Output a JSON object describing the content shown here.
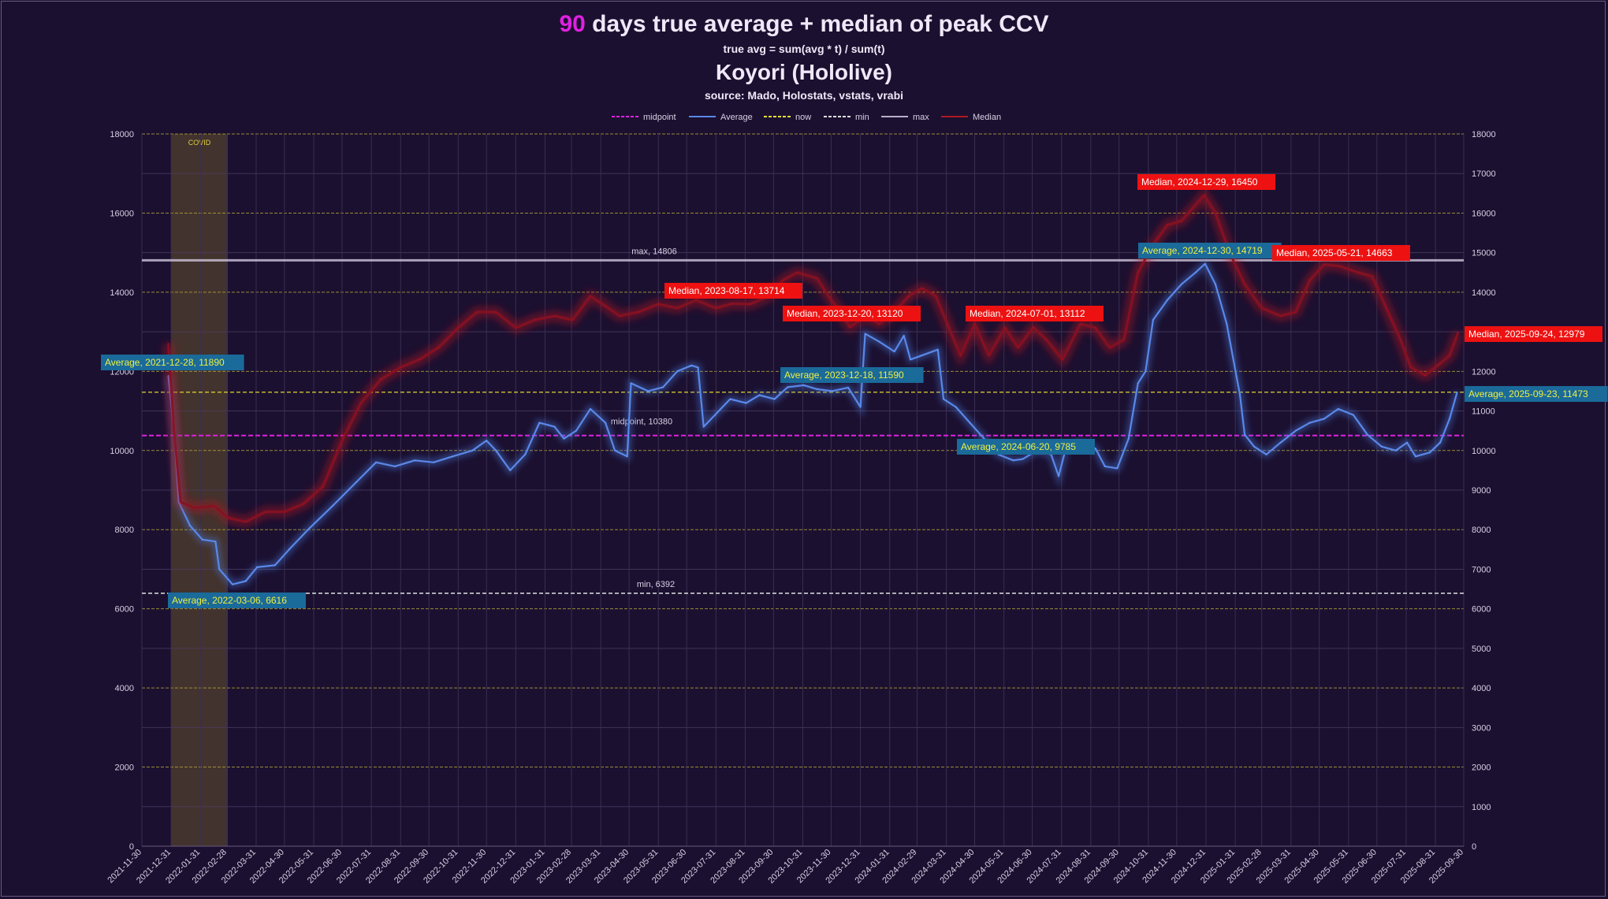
{
  "header": {
    "title_highlight": "90",
    "title_rest": " days true average + median of peak CCV",
    "subtitle": "true avg = sum(avg * t) / sum(t)",
    "channel": "Koyori (Hololive)",
    "source": "source: Mado, Holostats, vstats, vrabi"
  },
  "chart_data": {
    "type": "line",
    "title": "90 days true average + median of peak CCV",
    "subtitle": "true avg = sum(avg * t) / sum(t)",
    "legend_position": "top",
    "legend": [
      "midpoint",
      "Average",
      "now",
      "min",
      "max",
      "Median"
    ],
    "y_left": {
      "range": [
        0,
        18000
      ],
      "ticks": [
        0,
        2000,
        4000,
        6000,
        8000,
        10000,
        12000,
        14000,
        16000,
        18000
      ]
    },
    "y_right": {
      "range": [
        0,
        18000
      ],
      "ticks": [
        0,
        1000,
        2000,
        3000,
        4000,
        5000,
        6000,
        7000,
        8000,
        9000,
        10000,
        11000,
        12000,
        13000,
        14000,
        15000,
        16000,
        17000,
        18000
      ]
    },
    "x_range": [
      "2021-11-30",
      "2025-09-30"
    ],
    "x_ticks": [
      "2021-11-30",
      "2021-12-31",
      "2022-01-31",
      "2022-02-28",
      "2022-03-31",
      "2022-04-30",
      "2022-05-31",
      "2022-06-30",
      "2022-07-31",
      "2022-08-31",
      "2022-09-30",
      "2022-10-31",
      "2022-11-30",
      "2022-12-31",
      "2023-01-31",
      "2023-02-28",
      "2023-03-31",
      "2023-04-30",
      "2023-05-31",
      "2023-06-30",
      "2023-07-31",
      "2023-08-31",
      "2023-09-30",
      "2023-10-31",
      "2023-11-30",
      "2023-12-31",
      "2024-01-31",
      "2024-02-29",
      "2024-03-31",
      "2024-04-30",
      "2024-05-31",
      "2024-06-30",
      "2024-07-31",
      "2024-08-31",
      "2024-09-30",
      "2024-10-31",
      "2024-11-30",
      "2024-12-31",
      "2025-01-31",
      "2025-02-28",
      "2025-03-31",
      "2025-04-30",
      "2025-05-31",
      "2025-06-30",
      "2025-07-31",
      "2025-08-31",
      "2025-09-30"
    ],
    "grid": true,
    "shaded_region": {
      "label": "COVID",
      "from": "2021-12-31",
      "to": "2022-03-01"
    },
    "reference_lines": [
      {
        "name": "max",
        "value": 14806,
        "label": "max, 14806",
        "color": "#d0c8dc"
      },
      {
        "name": "midpoint",
        "value": 10380,
        "label": "midpoint, 10380",
        "color": "#e020e0"
      },
      {
        "name": "min",
        "value": 6392,
        "label": "min, 6392",
        "color": "#e0e0e0"
      },
      {
        "name": "now",
        "value": 11473,
        "label": "",
        "color": "#e8e030"
      }
    ],
    "series": [
      {
        "name": "Average",
        "color": "#5a88e8",
        "points": [
          [
            "2021-12-28",
            11890
          ],
          [
            "2022-01-03",
            10500
          ],
          [
            "2022-01-08",
            8700
          ],
          [
            "2022-01-20",
            8100
          ],
          [
            "2022-02-02",
            7750
          ],
          [
            "2022-02-16",
            7700
          ],
          [
            "2022-02-20",
            7000
          ],
          [
            "2022-03-06",
            6616
          ],
          [
            "2022-03-20",
            6700
          ],
          [
            "2022-04-01",
            7050
          ],
          [
            "2022-04-20",
            7100
          ],
          [
            "2022-05-05",
            7500
          ],
          [
            "2022-05-25",
            8000
          ],
          [
            "2022-06-20",
            8600
          ],
          [
            "2022-07-15",
            9200
          ],
          [
            "2022-08-05",
            9700
          ],
          [
            "2022-08-25",
            9600
          ],
          [
            "2022-09-15",
            9750
          ],
          [
            "2022-10-05",
            9700
          ],
          [
            "2022-10-25",
            9850
          ],
          [
            "2022-11-15",
            10000
          ],
          [
            "2022-11-30",
            10250
          ],
          [
            "2022-12-10",
            10000
          ],
          [
            "2022-12-25",
            9500
          ],
          [
            "2023-01-10",
            9900
          ],
          [
            "2023-01-25",
            10700
          ],
          [
            "2023-02-10",
            10600
          ],
          [
            "2023-02-20",
            10300
          ],
          [
            "2023-03-05",
            10500
          ],
          [
            "2023-03-20",
            11050
          ],
          [
            "2023-04-05",
            10700
          ],
          [
            "2023-04-15",
            10000
          ],
          [
            "2023-04-28",
            9850
          ],
          [
            "2023-05-02",
            11700
          ],
          [
            "2023-05-20",
            11500
          ],
          [
            "2023-06-05",
            11600
          ],
          [
            "2023-06-20",
            12000
          ],
          [
            "2023-07-05",
            12150
          ],
          [
            "2023-07-12",
            12100
          ],
          [
            "2023-07-18",
            10600
          ],
          [
            "2023-07-30",
            10900
          ],
          [
            "2023-08-15",
            11300
          ],
          [
            "2023-09-01",
            11200
          ],
          [
            "2023-09-15",
            11400
          ],
          [
            "2023-10-01",
            11300
          ],
          [
            "2023-10-15",
            11600
          ],
          [
            "2023-11-01",
            11650
          ],
          [
            "2023-11-15",
            11550
          ],
          [
            "2023-12-01",
            11500
          ],
          [
            "2023-12-18",
            11590
          ],
          [
            "2023-12-31",
            11100
          ],
          [
            "2024-01-05",
            12950
          ],
          [
            "2024-01-20",
            12750
          ],
          [
            "2024-02-05",
            12500
          ],
          [
            "2024-02-15",
            12900
          ],
          [
            "2024-02-22",
            12300
          ],
          [
            "2024-03-05",
            12400
          ],
          [
            "2024-03-22",
            12550
          ],
          [
            "2024-03-28",
            11300
          ],
          [
            "2024-04-10",
            11100
          ],
          [
            "2024-04-25",
            10700
          ],
          [
            "2024-05-10",
            10300
          ],
          [
            "2024-05-25",
            9900
          ],
          [
            "2024-06-10",
            9750
          ],
          [
            "2024-06-20",
            9785
          ],
          [
            "2024-07-05",
            10000
          ],
          [
            "2024-07-20",
            9900
          ],
          [
            "2024-07-28",
            9350
          ],
          [
            "2024-08-05",
            10100
          ],
          [
            "2024-08-20",
            10200
          ],
          [
            "2024-09-05",
            10050
          ],
          [
            "2024-09-15",
            9600
          ],
          [
            "2024-09-28",
            9550
          ],
          [
            "2024-10-10",
            10300
          ],
          [
            "2024-10-20",
            11700
          ],
          [
            "2024-10-28",
            12000
          ],
          [
            "2024-11-05",
            13300
          ],
          [
            "2024-11-20",
            13800
          ],
          [
            "2024-12-05",
            14200
          ],
          [
            "2024-12-20",
            14500
          ],
          [
            "2024-12-30",
            14719
          ],
          [
            "2025-01-10",
            14200
          ],
          [
            "2025-01-22",
            13200
          ],
          [
            "2025-02-05",
            11400
          ],
          [
            "2025-02-10",
            10400
          ],
          [
            "2025-02-20",
            10100
          ],
          [
            "2025-03-05",
            9900
          ],
          [
            "2025-03-20",
            10200
          ],
          [
            "2025-04-05",
            10500
          ],
          [
            "2025-04-20",
            10700
          ],
          [
            "2025-05-05",
            10800
          ],
          [
            "2025-05-20",
            11050
          ],
          [
            "2025-06-05",
            10900
          ],
          [
            "2025-06-20",
            10400
          ],
          [
            "2025-07-05",
            10100
          ],
          [
            "2025-07-20",
            10000
          ],
          [
            "2025-08-01",
            10200
          ],
          [
            "2025-08-10",
            9850
          ],
          [
            "2025-08-25",
            9950
          ],
          [
            "2025-09-05",
            10200
          ],
          [
            "2025-09-15",
            10800
          ],
          [
            "2025-09-23",
            11473
          ]
        ]
      },
      {
        "name": "Median",
        "color": "#c81818",
        "points": [
          [
            "2021-12-28",
            12700
          ],
          [
            "2022-01-03",
            10500
          ],
          [
            "2022-01-10",
            8700
          ],
          [
            "2022-01-25",
            8550
          ],
          [
            "2022-02-15",
            8600
          ],
          [
            "2022-03-01",
            8300
          ],
          [
            "2022-03-20",
            8200
          ],
          [
            "2022-04-10",
            8450
          ],
          [
            "2022-04-30",
            8450
          ],
          [
            "2022-05-20",
            8650
          ],
          [
            "2022-06-10",
            9100
          ],
          [
            "2022-07-01",
            10300
          ],
          [
            "2022-07-20",
            11200
          ],
          [
            "2022-08-10",
            11800
          ],
          [
            "2022-08-31",
            12100
          ],
          [
            "2022-09-20",
            12300
          ],
          [
            "2022-10-10",
            12600
          ],
          [
            "2022-10-31",
            13100
          ],
          [
            "2022-11-20",
            13500
          ],
          [
            "2022-12-10",
            13500
          ],
          [
            "2022-12-31",
            13100
          ],
          [
            "2023-01-20",
            13300
          ],
          [
            "2023-02-10",
            13400
          ],
          [
            "2023-03-01",
            13300
          ],
          [
            "2023-03-20",
            13900
          ],
          [
            "2023-04-05",
            13650
          ],
          [
            "2023-04-20",
            13400
          ],
          [
            "2023-05-10",
            13500
          ],
          [
            "2023-05-31",
            13700
          ],
          [
            "2023-06-20",
            13600
          ],
          [
            "2023-07-10",
            13800
          ],
          [
            "2023-07-31",
            13600
          ],
          [
            "2023-08-17",
            13714
          ],
          [
            "2023-09-05",
            13700
          ],
          [
            "2023-09-25",
            13900
          ],
          [
            "2023-10-10",
            14300
          ],
          [
            "2023-10-25",
            14500
          ],
          [
            "2023-11-15",
            14350
          ],
          [
            "2023-11-30",
            13800
          ],
          [
            "2023-12-10",
            13500
          ],
          [
            "2023-12-20",
            13120
          ],
          [
            "2024-01-05",
            13400
          ],
          [
            "2024-01-20",
            13200
          ],
          [
            "2024-02-05",
            13500
          ],
          [
            "2024-02-20",
            13900
          ],
          [
            "2024-03-05",
            14100
          ],
          [
            "2024-03-20",
            13900
          ],
          [
            "2024-04-01",
            13200
          ],
          [
            "2024-04-15",
            12400
          ],
          [
            "2024-04-30",
            13200
          ],
          [
            "2024-05-15",
            12400
          ],
          [
            "2024-06-01",
            13100
          ],
          [
            "2024-06-15",
            12600
          ],
          [
            "2024-07-01",
            13112
          ],
          [
            "2024-07-15",
            12800
          ],
          [
            "2024-08-01",
            12300
          ],
          [
            "2024-08-20",
            13200
          ],
          [
            "2024-09-05",
            13100
          ],
          [
            "2024-09-20",
            12600
          ],
          [
            "2024-10-05",
            12800
          ],
          [
            "2024-10-20",
            14500
          ],
          [
            "2024-11-05",
            15200
          ],
          [
            "2024-11-20",
            15700
          ],
          [
            "2024-12-05",
            15800
          ],
          [
            "2024-12-29",
            16450
          ],
          [
            "2025-01-10",
            16000
          ],
          [
            "2025-01-25",
            15000
          ],
          [
            "2025-02-10",
            14200
          ],
          [
            "2025-02-28",
            13600
          ],
          [
            "2025-03-20",
            13400
          ],
          [
            "2025-04-05",
            13500
          ],
          [
            "2025-04-20",
            14300
          ],
          [
            "2025-05-05",
            14700
          ],
          [
            "2025-05-21",
            14663
          ],
          [
            "2025-06-10",
            14500
          ],
          [
            "2025-06-25",
            14400
          ],
          [
            "2025-07-10",
            13600
          ],
          [
            "2025-07-25",
            12800
          ],
          [
            "2025-08-05",
            12100
          ],
          [
            "2025-08-20",
            11900
          ],
          [
            "2025-09-05",
            12200
          ],
          [
            "2025-09-15",
            12400
          ],
          [
            "2025-09-24",
            12979
          ]
        ]
      }
    ],
    "annotations": [
      {
        "series": "Average",
        "date": "2021-12-28",
        "value": 11890,
        "text": "Average, 2021-12-28, 11890"
      },
      {
        "series": "Average",
        "date": "2022-03-06",
        "value": 6616,
        "text": "Average, 2022-03-06, 6616"
      },
      {
        "series": "Average",
        "date": "2023-12-18",
        "value": 11590,
        "text": "Average, 2023-12-18, 11590"
      },
      {
        "series": "Average",
        "date": "2024-06-20",
        "value": 9785,
        "text": "Average, 2024-06-20, 9785"
      },
      {
        "series": "Average",
        "date": "2024-12-30",
        "value": 14719,
        "text": "Average, 2024-12-30, 14719"
      },
      {
        "series": "Average",
        "date": "2025-09-23",
        "value": 11473,
        "text": "Average, 2025-09-23, 11473"
      },
      {
        "series": "Median",
        "date": "2023-08-17",
        "value": 13714,
        "text": "Median, 2023-08-17, 13714"
      },
      {
        "series": "Median",
        "date": "2023-12-20",
        "value": 13120,
        "text": "Median, 2023-12-20, 13120"
      },
      {
        "series": "Median",
        "date": "2024-07-01",
        "value": 13112,
        "text": "Median, 2024-07-01, 13112"
      },
      {
        "series": "Median",
        "date": "2024-12-29",
        "value": 16450,
        "text": "Median, 2024-12-29, 16450"
      },
      {
        "series": "Median",
        "date": "2025-05-21",
        "value": 14663,
        "text": "Median, 2025-05-21, 14663"
      },
      {
        "series": "Median",
        "date": "2025-09-24",
        "value": 12979,
        "text": "Median, 2025-09-24, 12979"
      }
    ],
    "colors": {
      "background": "#1b1030",
      "average_label_bg": "#1a6a9a",
      "average_label_text": "#f0f040",
      "median_label_bg": "#ee1111",
      "median_label_text": "#ffffff",
      "major_grid": "#a89a38",
      "minor_grid": "#4a3e62",
      "covid_shade": "#4a3a2e"
    }
  }
}
